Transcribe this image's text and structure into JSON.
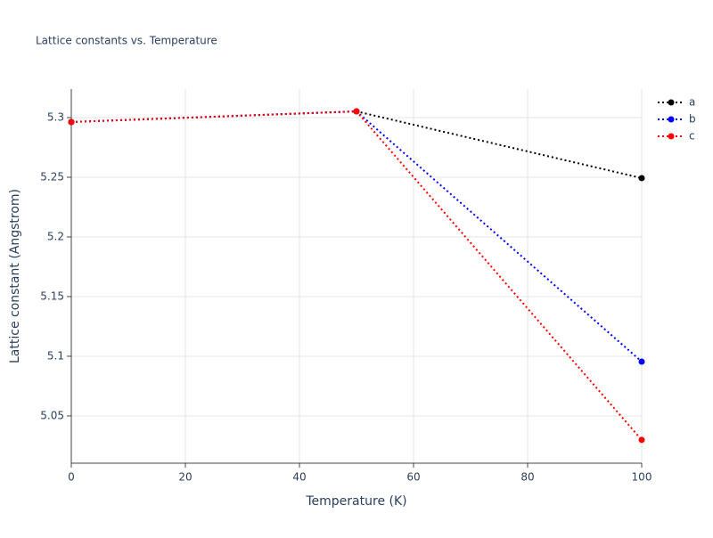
{
  "chart_data": {
    "type": "line",
    "title": "Lattice constants vs. Temperature",
    "x_label": "Temperature (K)",
    "y_label": "Lattice constant (Angstrom)",
    "x": [
      0,
      50,
      100
    ],
    "series": [
      {
        "name": "a",
        "color": "#000000",
        "values": [
          5.2963,
          5.3052,
          5.2493
        ]
      },
      {
        "name": "b",
        "color": "#0000ff",
        "values": [
          5.2963,
          5.3052,
          5.0955
        ]
      },
      {
        "name": "c",
        "color": "#ff0000",
        "values": [
          5.2963,
          5.3052,
          5.0299
        ]
      }
    ],
    "xlim": [
      0,
      100
    ],
    "xticks": [
      0,
      20,
      40,
      60,
      80,
      100
    ],
    "ylim": [
      5.0104,
      5.3239
    ],
    "yticks": [
      5.05,
      5.1,
      5.15,
      5.2,
      5.25,
      5.3
    ],
    "grid": true,
    "legend": "top-right"
  }
}
